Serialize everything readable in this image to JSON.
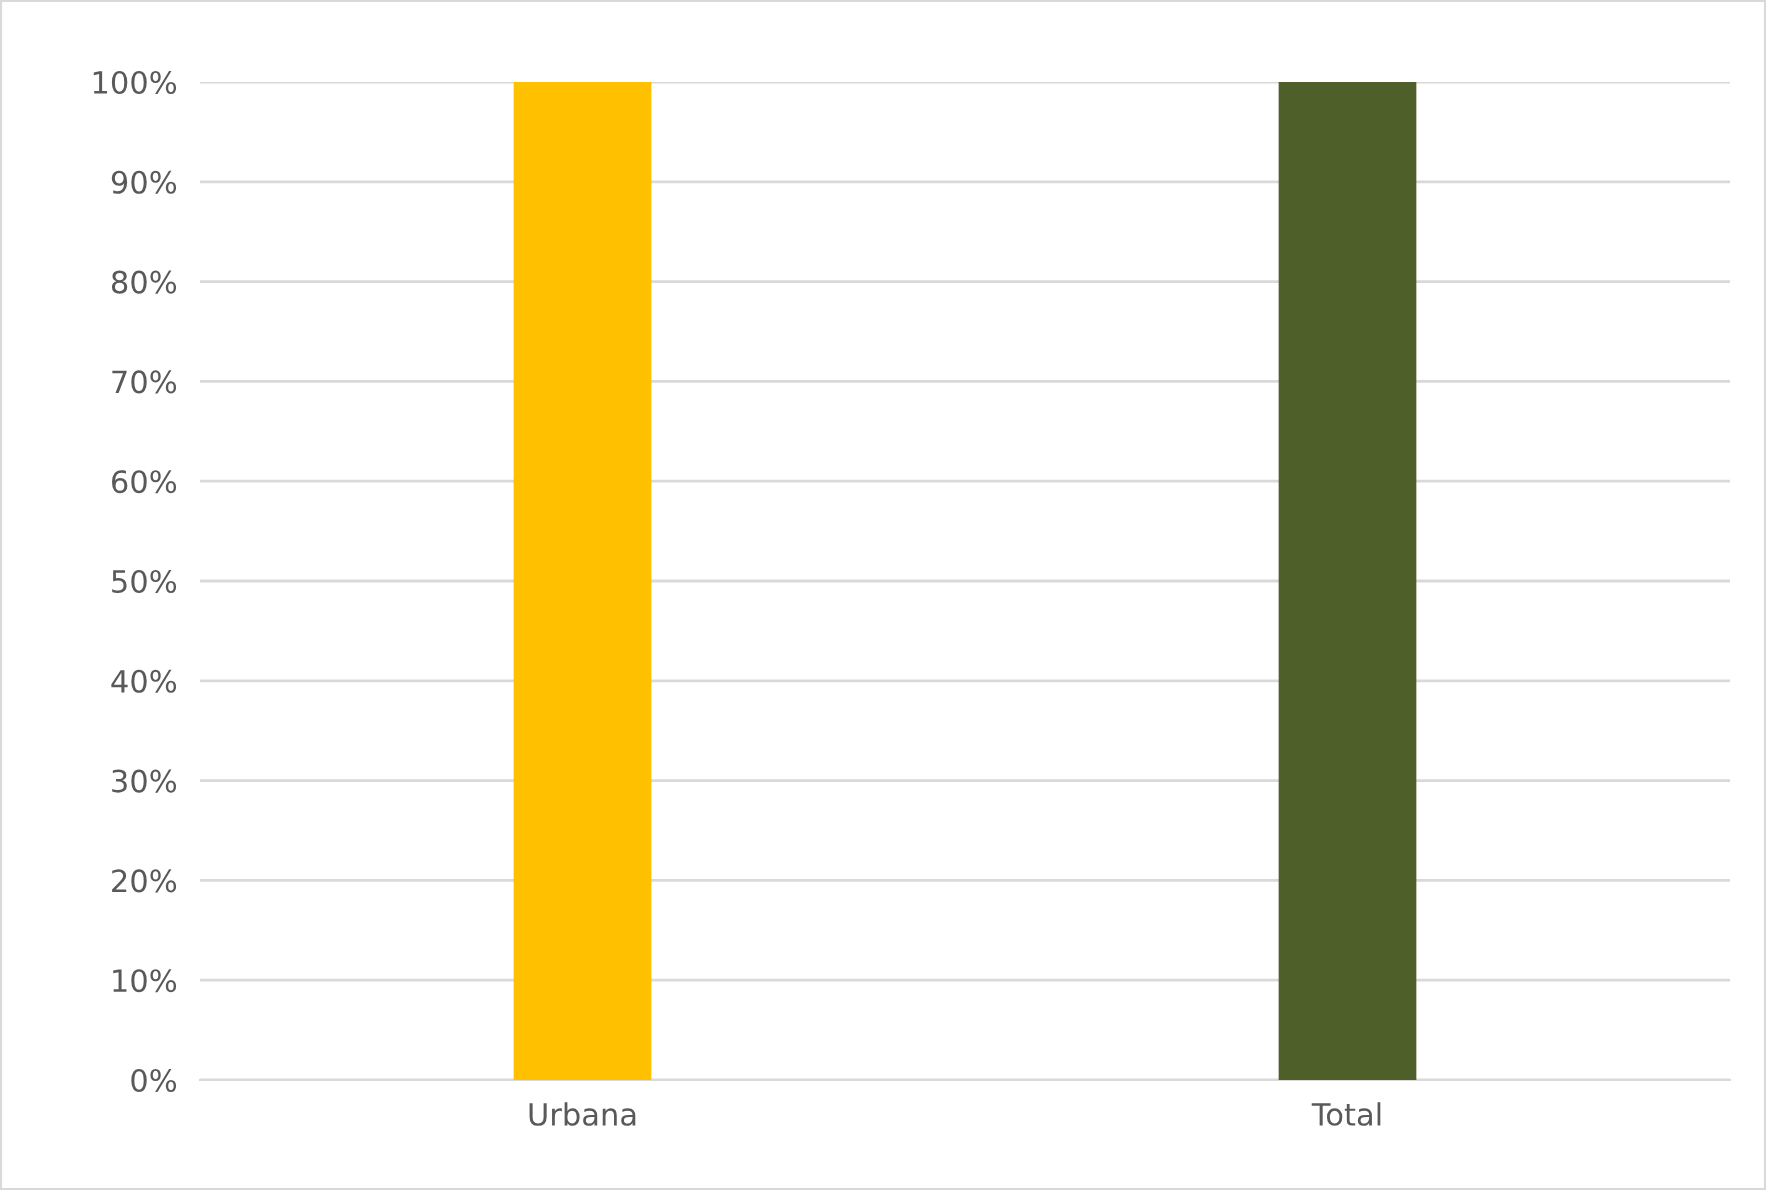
{
  "chart_data": {
    "type": "bar",
    "categories": [
      "Urbana",
      "Total"
    ],
    "values": [
      100,
      100
    ],
    "colors": [
      "#ffc000",
      "#4e5f2a"
    ],
    "ylim": [
      0,
      100
    ],
    "yticks": [
      {
        "value": 0,
        "label": "0%"
      },
      {
        "value": 10,
        "label": "10%"
      },
      {
        "value": 20,
        "label": "20%"
      },
      {
        "value": 30,
        "label": "30%"
      },
      {
        "value": 40,
        "label": "40%"
      },
      {
        "value": 50,
        "label": "50%"
      },
      {
        "value": 60,
        "label": "60%"
      },
      {
        "value": 70,
        "label": "70%"
      },
      {
        "value": 80,
        "label": "80%"
      },
      {
        "value": 90,
        "label": "90%"
      },
      {
        "value": 100,
        "label": "100%"
      }
    ],
    "grid": "y"
  }
}
